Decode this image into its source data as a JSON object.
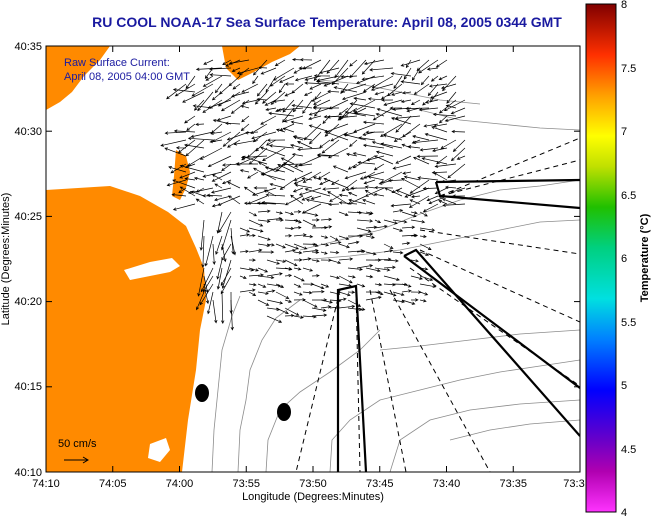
{
  "title": "RU COOL  NOAA-17  Sea Surface Temperature:  April 08, 2005 0344 GMT",
  "annotation": {
    "line1": "Raw Surface Current:",
    "line2": "April 08, 2005 04:00 GMT"
  },
  "scale_label": "50 cm/s",
  "xlabel": "Longitude (Degrees:Minutes)",
  "ylabel": "Latitude (Degrees:Minutes)",
  "x_ticks": [
    "74:10",
    "74:05",
    "74:00",
    "73:55",
    "73:50",
    "73:45",
    "73:40",
    "73:35",
    "73:3"
  ],
  "y_ticks": [
    "40:35",
    "40:30",
    "40:25",
    "40:20",
    "40:15",
    "40:10"
  ],
  "colorbar": {
    "label": "Temperature (°C)",
    "ticks": [
      "8",
      "7.5",
      "7",
      "6.5",
      "6",
      "5.5",
      "5",
      "4.5",
      "4"
    ],
    "range": [
      4,
      8
    ]
  },
  "colors": {
    "land": "#ff8a00",
    "title": "#1a1aa0",
    "water": "#ffffff",
    "contour": "#8c8c8c"
  }
}
